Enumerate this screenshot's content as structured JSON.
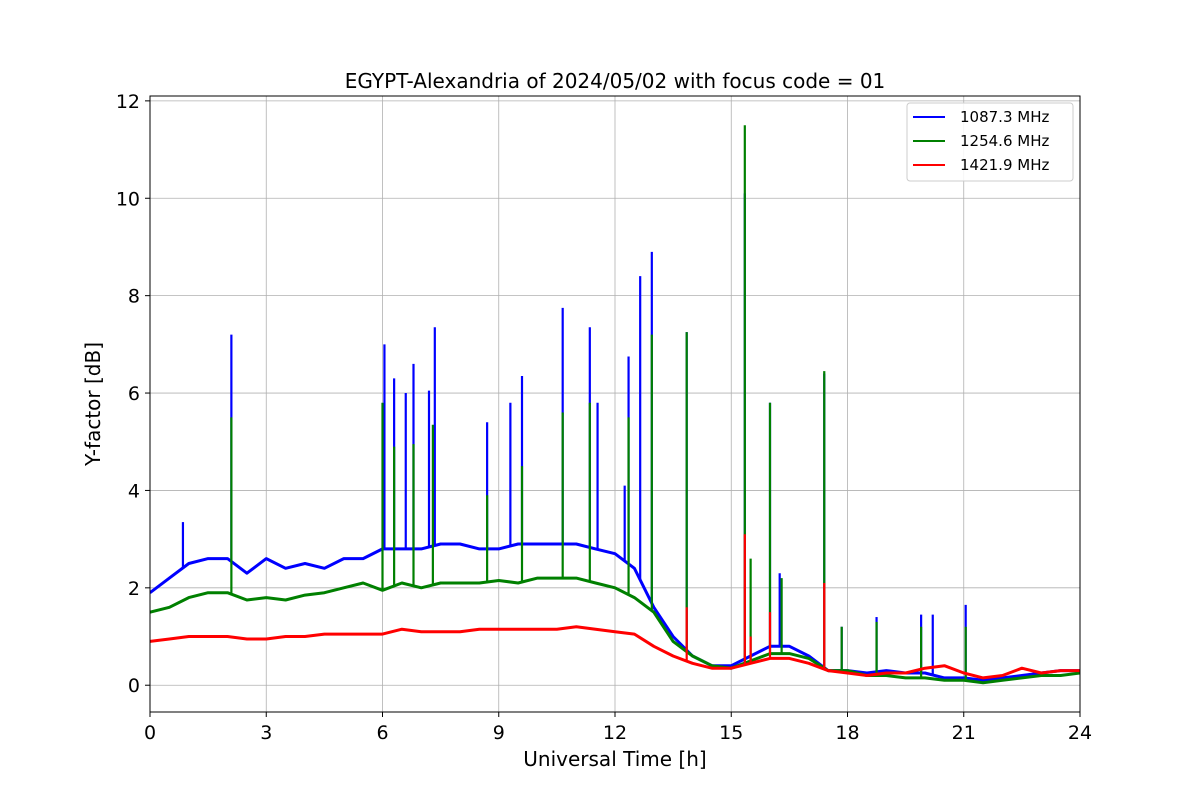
{
  "chart_data": {
    "type": "line",
    "title": "EGYPT-Alexandria of 2024/05/02 with focus code = 01",
    "xlabel": "Universal Time [h]",
    "ylabel": "Y-factor [dB]",
    "xlim": [
      0,
      24
    ],
    "ylim": [
      -0.55,
      12.1
    ],
    "xticks": [
      0,
      3,
      6,
      9,
      12,
      15,
      18,
      21,
      24
    ],
    "yticks": [
      0,
      2,
      4,
      6,
      8,
      10,
      12
    ],
    "xtick_labels": [
      "0",
      "3",
      "6",
      "9",
      "12",
      "15",
      "18",
      "21",
      "24"
    ],
    "ytick_labels": [
      "0",
      "2",
      "4",
      "6",
      "8",
      "10",
      "12"
    ],
    "grid": true,
    "legend_position": "top-right",
    "series": [
      {
        "name": "1087.3 MHz",
        "color": "#0000ff",
        "x": [
          0,
          0.5,
          1,
          1.5,
          2,
          2.5,
          3,
          3.5,
          4,
          4.5,
          5,
          5.5,
          6,
          6.5,
          7,
          7.5,
          8,
          8.5,
          9,
          9.5,
          10,
          10.5,
          11,
          11.5,
          12,
          12.5,
          13,
          13.5,
          14,
          14.5,
          15,
          15.5,
          16,
          16.5,
          17,
          17.5,
          18,
          18.5,
          19,
          19.5,
          20,
          20.5,
          21,
          21.5,
          22,
          22.5,
          23,
          23.5,
          24
        ],
        "values": [
          1.9,
          2.2,
          2.5,
          2.6,
          2.6,
          2.3,
          2.6,
          2.4,
          2.5,
          2.4,
          2.6,
          2.6,
          2.8,
          2.8,
          2.8,
          2.9,
          2.9,
          2.8,
          2.8,
          2.9,
          2.9,
          2.9,
          2.9,
          2.8,
          2.7,
          2.4,
          1.6,
          1.0,
          0.6,
          0.4,
          0.4,
          0.6,
          0.8,
          0.8,
          0.6,
          0.3,
          0.3,
          0.25,
          0.3,
          0.25,
          0.25,
          0.15,
          0.15,
          0.1,
          0.15,
          0.2,
          0.25,
          0.3,
          0.3
        ],
        "spikes": [
          [
            0.85,
            3.35
          ],
          [
            2.1,
            7.2
          ],
          [
            6.05,
            7.0
          ],
          [
            6.3,
            6.3
          ],
          [
            6.6,
            6.0
          ],
          [
            6.8,
            6.6
          ],
          [
            7.2,
            6.05
          ],
          [
            7.35,
            7.35
          ],
          [
            8.7,
            5.4
          ],
          [
            9.3,
            5.8
          ],
          [
            9.6,
            6.35
          ],
          [
            10.65,
            7.75
          ],
          [
            11.35,
            7.35
          ],
          [
            11.55,
            5.8
          ],
          [
            12.25,
            4.1
          ],
          [
            12.35,
            6.75
          ],
          [
            12.65,
            8.4
          ],
          [
            12.95,
            8.9
          ],
          [
            13.85,
            7.25
          ],
          [
            15.35,
            10.1
          ],
          [
            16.0,
            5.8
          ],
          [
            16.25,
            2.3
          ],
          [
            17.4,
            6.4
          ],
          [
            17.85,
            1.2
          ],
          [
            18.75,
            1.4
          ],
          [
            19.9,
            1.45
          ],
          [
            20.2,
            1.45
          ],
          [
            21.05,
            1.65
          ]
        ]
      },
      {
        "name": "1254.6 MHz",
        "color": "#008000",
        "x": [
          0,
          0.5,
          1,
          1.5,
          2,
          2.5,
          3,
          3.5,
          4,
          4.5,
          5,
          5.5,
          6,
          6.5,
          7,
          7.5,
          8,
          8.5,
          9,
          9.5,
          10,
          10.5,
          11,
          11.5,
          12,
          12.5,
          13,
          13.5,
          14,
          14.5,
          15,
          15.5,
          16,
          16.5,
          17,
          17.5,
          18,
          18.5,
          19,
          19.5,
          20,
          20.5,
          21,
          21.5,
          22,
          22.5,
          23,
          23.5,
          24
        ],
        "values": [
          1.5,
          1.6,
          1.8,
          1.9,
          1.9,
          1.75,
          1.8,
          1.75,
          1.85,
          1.9,
          2.0,
          2.1,
          1.95,
          2.1,
          2.0,
          2.1,
          2.1,
          2.1,
          2.15,
          2.1,
          2.2,
          2.2,
          2.2,
          2.1,
          2.0,
          1.8,
          1.5,
          0.9,
          0.6,
          0.4,
          0.35,
          0.5,
          0.65,
          0.65,
          0.55,
          0.3,
          0.3,
          0.2,
          0.2,
          0.15,
          0.15,
          0.1,
          0.1,
          0.05,
          0.1,
          0.15,
          0.2,
          0.2,
          0.25
        ],
        "spikes": [
          [
            2.1,
            5.5
          ],
          [
            6.0,
            5.8
          ],
          [
            6.3,
            4.9
          ],
          [
            6.8,
            4.95
          ],
          [
            7.3,
            5.35
          ],
          [
            8.7,
            3.9
          ],
          [
            9.6,
            4.5
          ],
          [
            10.65,
            5.6
          ],
          [
            11.35,
            5.8
          ],
          [
            12.35,
            5.5
          ],
          [
            12.95,
            7.2
          ],
          [
            13.85,
            7.25
          ],
          [
            15.35,
            11.5
          ],
          [
            15.5,
            2.6
          ],
          [
            16.0,
            5.8
          ],
          [
            16.3,
            2.2
          ],
          [
            17.4,
            6.45
          ],
          [
            17.85,
            1.2
          ],
          [
            18.75,
            1.3
          ],
          [
            19.9,
            1.2
          ],
          [
            21.05,
            1.2
          ]
        ]
      },
      {
        "name": "1421.9 MHz",
        "color": "#ff0000",
        "x": [
          0,
          0.5,
          1,
          1.5,
          2,
          2.5,
          3,
          3.5,
          4,
          4.5,
          5,
          5.5,
          6,
          6.5,
          7,
          7.5,
          8,
          8.5,
          9,
          9.5,
          10,
          10.5,
          11,
          11.5,
          12,
          12.5,
          13,
          13.5,
          14,
          14.5,
          15,
          15.5,
          16,
          16.5,
          17,
          17.5,
          18,
          18.5,
          19,
          19.5,
          20,
          20.5,
          21,
          21.5,
          22,
          22.5,
          23,
          23.5,
          24
        ],
        "values": [
          0.9,
          0.95,
          1.0,
          1.0,
          1.0,
          0.95,
          0.95,
          1.0,
          1.0,
          1.05,
          1.05,
          1.05,
          1.05,
          1.15,
          1.1,
          1.1,
          1.1,
          1.15,
          1.15,
          1.15,
          1.15,
          1.15,
          1.2,
          1.15,
          1.1,
          1.05,
          0.8,
          0.6,
          0.45,
          0.35,
          0.35,
          0.45,
          0.55,
          0.55,
          0.45,
          0.3,
          0.25,
          0.2,
          0.25,
          0.25,
          0.35,
          0.4,
          0.25,
          0.15,
          0.2,
          0.35,
          0.25,
          0.3,
          0.3
        ],
        "spikes": [
          [
            13.85,
            1.6
          ],
          [
            15.35,
            3.1
          ],
          [
            15.5,
            1.0
          ],
          [
            16.0,
            1.5
          ],
          [
            17.4,
            2.1
          ]
        ]
      }
    ]
  }
}
